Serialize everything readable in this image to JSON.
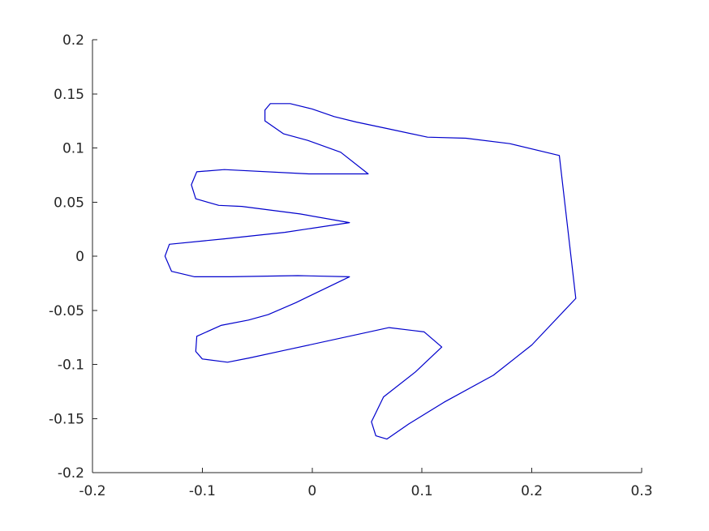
{
  "chart_data": {
    "type": "line",
    "title": "",
    "xlabel": "",
    "ylabel": "",
    "xlim": [
      -0.2,
      0.3
    ],
    "ylim": [
      -0.2,
      0.2
    ],
    "grid": false,
    "box": false,
    "x_ticks": [
      -0.2,
      -0.1,
      0,
      0.1,
      0.2,
      0.3
    ],
    "x_tick_labels": [
      "-0.2",
      "-0.1",
      "0",
      "0.1",
      "0.2",
      "0.3"
    ],
    "y_ticks": [
      -0.2,
      -0.15,
      -0.1,
      -0.05,
      0,
      0.05,
      0.1,
      0.15,
      0.2
    ],
    "y_tick_labels": [
      "-0.2",
      "-0.15",
      "-0.1",
      "-0.05",
      "0",
      "0.05",
      "0.1",
      "0.15",
      "0.2"
    ],
    "series": [
      {
        "color": "#0000cc",
        "closed": true,
        "x": [
          -0.038,
          -0.043,
          -0.043,
          -0.026,
          -0.004,
          0.026,
          0.051,
          -0.003,
          -0.08,
          -0.105,
          -0.11,
          -0.106,
          -0.085,
          -0.064,
          -0.011,
          0.034,
          -0.025,
          -0.08,
          -0.13,
          -0.134,
          -0.128,
          -0.107,
          -0.075,
          -0.013,
          0.034,
          -0.015,
          -0.04,
          -0.058,
          -0.083,
          -0.105,
          -0.106,
          -0.1,
          -0.077,
          -0.057,
          -0.025,
          0.07,
          0.102,
          0.118,
          0.094,
          0.065,
          0.054,
          0.058,
          0.068,
          0.088,
          0.12,
          0.165,
          0.2,
          0.24,
          0.225,
          0.18,
          0.14,
          0.105,
          0.068,
          0.04,
          0.02,
          0.0,
          -0.02,
          -0.038
        ],
        "y": [
          0.141,
          0.135,
          0.125,
          0.113,
          0.107,
          0.096,
          0.076,
          0.076,
          0.08,
          0.078,
          0.066,
          0.053,
          0.047,
          0.046,
          0.039,
          0.031,
          0.022,
          0.016,
          0.011,
          0.0,
          -0.014,
          -0.019,
          -0.019,
          -0.018,
          -0.019,
          -0.043,
          -0.054,
          -0.059,
          -0.064,
          -0.074,
          -0.088,
          -0.095,
          -0.098,
          -0.094,
          -0.087,
          -0.066,
          -0.07,
          -0.084,
          -0.107,
          -0.13,
          -0.153,
          -0.166,
          -0.169,
          -0.155,
          -0.135,
          -0.11,
          -0.082,
          -0.039,
          0.093,
          0.104,
          0.109,
          0.11,
          0.118,
          0.124,
          0.129,
          0.136,
          0.141,
          0.141
        ]
      }
    ]
  }
}
